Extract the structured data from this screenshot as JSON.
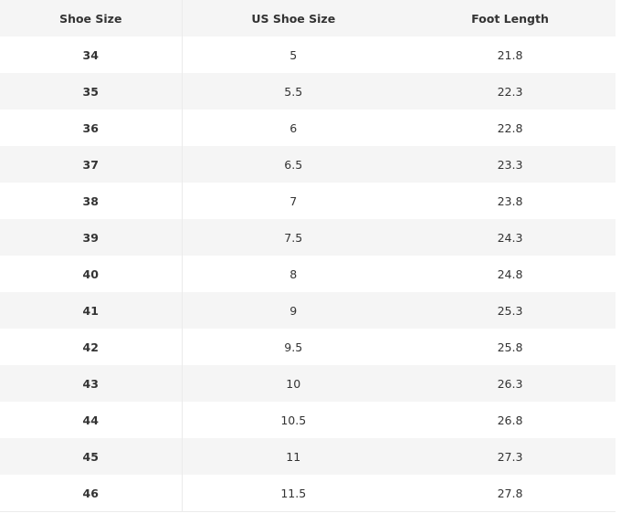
{
  "table": {
    "headers": [
      "Shoe Size",
      "US Shoe Size",
      "Foot Length"
    ],
    "rows": [
      [
        "34",
        "5",
        "21.8"
      ],
      [
        "35",
        "5.5",
        "22.3"
      ],
      [
        "36",
        "6",
        "22.8"
      ],
      [
        "37",
        "6.5",
        "23.3"
      ],
      [
        "38",
        "7",
        "23.8"
      ],
      [
        "39",
        "7.5",
        "24.3"
      ],
      [
        "40",
        "8",
        "24.8"
      ],
      [
        "41",
        "9",
        "25.3"
      ],
      [
        "42",
        "9.5",
        "25.8"
      ],
      [
        "43",
        "10",
        "26.3"
      ],
      [
        "44",
        "10.5",
        "26.8"
      ],
      [
        "45",
        "11",
        "27.3"
      ],
      [
        "46",
        "11.5",
        "27.8"
      ]
    ]
  },
  "colors": {
    "stripe": "#f5f5f5",
    "text": "#333333"
  }
}
